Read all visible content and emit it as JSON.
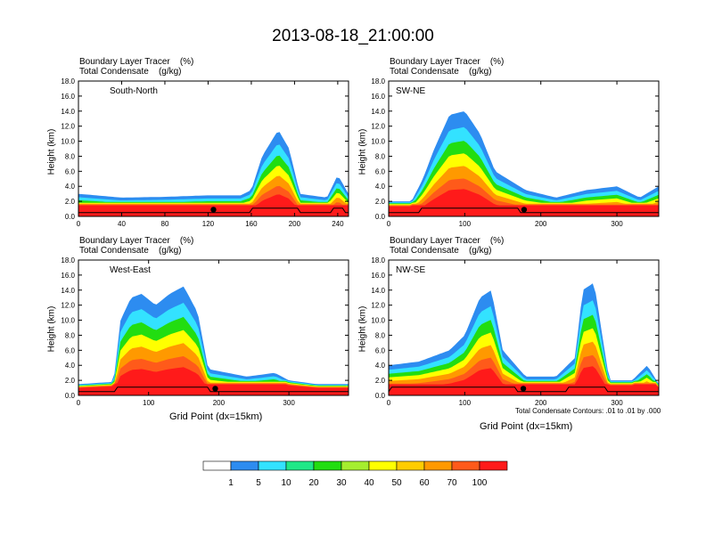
{
  "title": "2013-08-18_21:00:00",
  "colors": {
    "levels": [
      "#ffffff",
      "#2d8cf0",
      "#33e2ff",
      "#1fe887",
      "#22dd11",
      "#a5ee2f",
      "#ffff00",
      "#ffcc00",
      "#ff9900",
      "#ff5a1a",
      "#ff1a1a"
    ],
    "contour": "#000000"
  },
  "colorbar": {
    "labels": [
      "1",
      "5",
      "10",
      "20",
      "30",
      "40",
      "50",
      "60",
      "70",
      "100"
    ]
  },
  "footnote": "Total Condensate Contours: .01 to .01 by .000",
  "chart_data": [
    {
      "type": "heatmap",
      "panel_label": "South-North",
      "title_line1": "Boundary Layer Tracer    (%)",
      "title_line2": "Total Condensate    (g/kg)",
      "ylabel": "Height (km)",
      "xlabel": "",
      "xlim": [
        0,
        250
      ],
      "ylim": [
        0,
        18
      ],
      "xticks": [
        "0",
        "40",
        "80",
        "120",
        "160",
        "200",
        "240"
      ],
      "xtick_values": [
        0,
        40,
        80,
        120,
        160,
        200,
        240
      ],
      "yticks": [
        "0.0",
        "2.0",
        "4.0",
        "6.0",
        "8.0",
        "10.0",
        "12.0",
        "14.0",
        "16.0",
        "18.0"
      ],
      "tracer_top_km": [
        [
          0,
          3.0
        ],
        [
          40,
          2.5
        ],
        [
          80,
          2.6
        ],
        [
          120,
          2.8
        ],
        [
          150,
          2.8
        ],
        [
          160,
          3.5
        ],
        [
          170,
          8.0
        ],
        [
          185,
          11.5
        ],
        [
          195,
          9.0
        ],
        [
          205,
          3.0
        ],
        [
          230,
          2.5
        ],
        [
          240,
          5.5
        ],
        [
          250,
          3.0
        ]
      ],
      "marker_x": 125
    },
    {
      "type": "heatmap",
      "panel_label": "SW-NE",
      "title_line1": "Boundary Layer Tracer    (%)",
      "title_line2": "Total Condensate    (g/kg)",
      "ylabel": "Height (km)",
      "xlabel": "",
      "xlim": [
        0,
        355
      ],
      "ylim": [
        0,
        18
      ],
      "xticks": [
        "0",
        "100",
        "200",
        "300"
      ],
      "xtick_values": [
        0,
        100,
        200,
        300
      ],
      "yticks": [
        "0.0",
        "2.0",
        "4.0",
        "6.0",
        "8.0",
        "10.0",
        "12.0",
        "14.0",
        "16.0",
        "18.0"
      ],
      "tracer_top_km": [
        [
          0,
          2.0
        ],
        [
          30,
          2.0
        ],
        [
          45,
          5.0
        ],
        [
          60,
          9.0
        ],
        [
          80,
          13.5
        ],
        [
          100,
          14.0
        ],
        [
          120,
          11.0
        ],
        [
          140,
          6.0
        ],
        [
          180,
          3.5
        ],
        [
          220,
          2.5
        ],
        [
          260,
          3.5
        ],
        [
          300,
          4.0
        ],
        [
          330,
          2.5
        ],
        [
          355,
          4.0
        ]
      ],
      "marker_x": 178
    },
    {
      "type": "heatmap",
      "panel_label": "West-East",
      "title_line1": "Boundary Layer Tracer    (%)",
      "title_line2": "Total Condensate    (g/kg)",
      "ylabel": "Height (km)",
      "xlabel": "Grid Point (dx=15km)",
      "xlim": [
        0,
        385
      ],
      "ylim": [
        0,
        18
      ],
      "xticks": [
        "0",
        "100",
        "200",
        "300"
      ],
      "xtick_values": [
        0,
        100,
        200,
        300
      ],
      "yticks": [
        "0.0",
        "2.0",
        "4.0",
        "6.0",
        "8.0",
        "10.0",
        "12.0",
        "14.0",
        "16.0",
        "18.0"
      ],
      "tracer_top_km": [
        [
          0,
          1.5
        ],
        [
          50,
          1.8
        ],
        [
          60,
          10.0
        ],
        [
          75,
          13.0
        ],
        [
          90,
          13.5
        ],
        [
          110,
          12.0
        ],
        [
          130,
          13.5
        ],
        [
          150,
          14.5
        ],
        [
          170,
          11.0
        ],
        [
          185,
          3.5
        ],
        [
          240,
          2.5
        ],
        [
          280,
          3.0
        ],
        [
          300,
          2.0
        ],
        [
          340,
          1.5
        ],
        [
          385,
          1.5
        ]
      ],
      "marker_x": 195
    },
    {
      "type": "heatmap",
      "panel_label": "NW-SE",
      "title_line1": "Boundary Layer Tracer    (%)",
      "title_line2": "Total Condensate    (g/kg)",
      "ylabel": "Height (km)",
      "xlabel": "Grid Point (dx=15km)",
      "xlim": [
        0,
        355
      ],
      "ylim": [
        0,
        18
      ],
      "xticks": [
        "0",
        "100",
        "200",
        "300"
      ],
      "xtick_values": [
        0,
        100,
        200,
        300
      ],
      "yticks": [
        "0.0",
        "2.0",
        "4.0",
        "6.0",
        "8.0",
        "10.0",
        "12.0",
        "14.0",
        "16.0",
        "18.0"
      ],
      "tracer_top_km": [
        [
          0,
          4.0
        ],
        [
          40,
          4.5
        ],
        [
          80,
          6.0
        ],
        [
          100,
          8.0
        ],
        [
          120,
          13.0
        ],
        [
          135,
          14.0
        ],
        [
          150,
          6.0
        ],
        [
          180,
          2.5
        ],
        [
          220,
          2.5
        ],
        [
          245,
          5.0
        ],
        [
          255,
          14.0
        ],
        [
          270,
          15.0
        ],
        [
          290,
          2.0
        ],
        [
          320,
          2.0
        ],
        [
          340,
          4.0
        ],
        [
          355,
          1.5
        ]
      ],
      "marker_x": 177
    }
  ]
}
